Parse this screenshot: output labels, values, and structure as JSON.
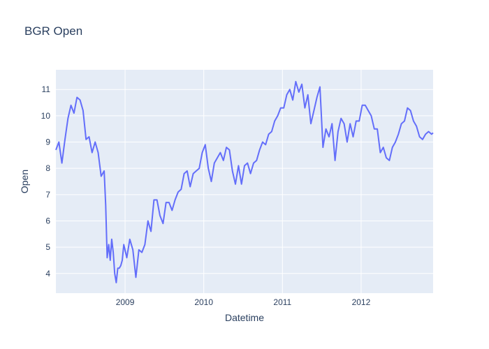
{
  "chart_data": {
    "type": "line",
    "title": "BGR Open",
    "xlabel": "Datetime",
    "ylabel": "Open",
    "x_range": [
      "2008-02-15",
      "2012-11-30"
    ],
    "y_range": [
      3.25,
      11.75
    ],
    "x_ticks": [
      {
        "date": "2009-01-01",
        "label": "2009"
      },
      {
        "date": "2010-01-01",
        "label": "2010"
      },
      {
        "date": "2011-01-01",
        "label": "2011"
      },
      {
        "date": "2012-01-01",
        "label": "2012"
      }
    ],
    "y_ticks": [
      4,
      5,
      6,
      7,
      8,
      9,
      10,
      11
    ],
    "grid": true,
    "line_color": "#636efa",
    "plot_bg": "#e5ecf6",
    "series": [
      {
        "x": [
          "2008-02-15",
          "2008-02-29",
          "2008-03-14",
          "2008-03-28",
          "2008-04-11",
          "2008-04-25",
          "2008-05-09",
          "2008-05-23",
          "2008-06-06",
          "2008-06-20",
          "2008-07-04",
          "2008-07-18",
          "2008-08-01",
          "2008-08-15",
          "2008-08-29",
          "2008-09-12",
          "2008-09-26",
          "2008-10-03",
          "2008-10-10",
          "2008-10-17",
          "2008-10-24",
          "2008-10-31",
          "2008-11-07",
          "2008-11-14",
          "2008-11-21",
          "2008-11-28",
          "2008-12-05",
          "2008-12-12",
          "2008-12-19",
          "2008-12-26",
          "2009-01-09",
          "2009-01-23",
          "2009-02-06",
          "2009-02-20",
          "2009-03-06",
          "2009-03-20",
          "2009-04-03",
          "2009-04-17",
          "2009-05-01",
          "2009-05-15",
          "2009-05-29",
          "2009-06-12",
          "2009-06-26",
          "2009-07-10",
          "2009-07-24",
          "2009-08-07",
          "2009-08-21",
          "2009-09-04",
          "2009-09-18",
          "2009-10-02",
          "2009-10-16",
          "2009-10-30",
          "2009-11-13",
          "2009-11-27",
          "2009-12-11",
          "2009-12-25",
          "2010-01-08",
          "2010-01-22",
          "2010-02-05",
          "2010-02-19",
          "2010-03-05",
          "2010-03-19",
          "2010-04-02",
          "2010-04-16",
          "2010-04-30",
          "2010-05-14",
          "2010-05-28",
          "2010-06-11",
          "2010-06-25",
          "2010-07-09",
          "2010-07-23",
          "2010-08-06",
          "2010-08-20",
          "2010-09-03",
          "2010-09-17",
          "2010-10-01",
          "2010-10-15",
          "2010-10-29",
          "2010-11-12",
          "2010-11-26",
          "2010-12-10",
          "2010-12-24",
          "2011-01-07",
          "2011-01-21",
          "2011-02-04",
          "2011-02-18",
          "2011-03-04",
          "2011-03-18",
          "2011-04-01",
          "2011-04-15",
          "2011-04-29",
          "2011-05-13",
          "2011-05-27",
          "2011-06-10",
          "2011-06-24",
          "2011-07-08",
          "2011-07-22",
          "2011-08-05",
          "2011-08-19",
          "2011-09-02",
          "2011-09-16",
          "2011-09-30",
          "2011-10-14",
          "2011-10-28",
          "2011-11-11",
          "2011-11-25",
          "2011-12-09",
          "2011-12-23",
          "2012-01-06",
          "2012-01-20",
          "2012-02-03",
          "2012-02-17",
          "2012-03-02",
          "2012-03-16",
          "2012-03-30",
          "2012-04-13",
          "2012-04-27",
          "2012-05-11",
          "2012-05-25",
          "2012-06-08",
          "2012-06-22",
          "2012-07-06",
          "2012-07-20",
          "2012-08-03",
          "2012-08-17",
          "2012-08-31",
          "2012-09-14",
          "2012-09-28",
          "2012-10-12",
          "2012-10-26",
          "2012-11-09",
          "2012-11-23",
          "2012-11-30"
        ],
        "values": [
          8.7,
          9.0,
          8.2,
          9.1,
          9.9,
          10.4,
          10.1,
          10.7,
          10.6,
          10.2,
          9.1,
          9.2,
          8.6,
          9.0,
          8.6,
          7.7,
          7.9,
          6.6,
          4.6,
          5.1,
          4.5,
          5.3,
          4.8,
          4.0,
          3.65,
          4.2,
          4.2,
          4.3,
          4.5,
          5.1,
          4.6,
          5.3,
          4.9,
          3.85,
          4.9,
          4.8,
          5.1,
          6.0,
          5.6,
          6.8,
          6.8,
          6.2,
          5.9,
          6.7,
          6.7,
          6.4,
          6.8,
          7.1,
          7.2,
          7.8,
          7.9,
          7.3,
          7.8,
          7.9,
          8.0,
          8.6,
          8.9,
          8.0,
          7.5,
          8.2,
          8.4,
          8.6,
          8.3,
          8.8,
          8.7,
          7.9,
          7.4,
          8.1,
          7.4,
          8.1,
          8.2,
          7.8,
          8.2,
          8.3,
          8.7,
          9.0,
          8.9,
          9.3,
          9.4,
          9.8,
          10.0,
          10.3,
          10.3,
          10.8,
          11.0,
          10.6,
          11.3,
          10.9,
          11.2,
          10.3,
          10.8,
          9.7,
          10.2,
          10.7,
          11.1,
          8.8,
          9.5,
          9.2,
          9.7,
          8.3,
          9.4,
          9.9,
          9.7,
          9.0,
          9.7,
          9.2,
          9.8,
          9.8,
          10.4,
          10.4,
          10.2,
          10.0,
          9.5,
          9.5,
          8.6,
          8.8,
          8.4,
          8.3,
          8.8,
          9.0,
          9.3,
          9.7,
          9.8,
          10.3,
          10.2,
          9.8,
          9.6,
          9.2,
          9.1,
          9.3,
          9.4,
          9.3,
          9.35
        ]
      }
    ]
  }
}
